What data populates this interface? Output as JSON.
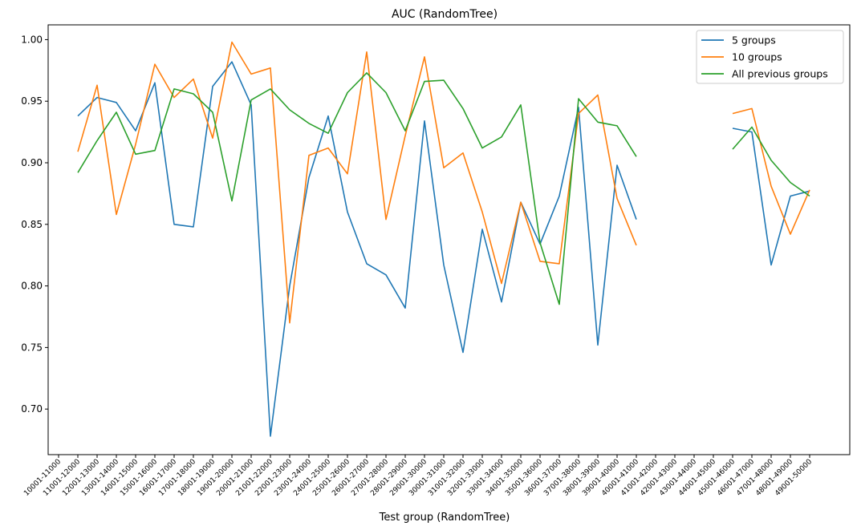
{
  "chart_data": {
    "type": "line",
    "title": "AUC (RandomTree)",
    "xlabel": "Test group (RandomTree)",
    "ylabel": "",
    "ylim": [
      0.663,
      1.012
    ],
    "yticks": [
      "0.70",
      "0.75",
      "0.80",
      "0.85",
      "0.90",
      "0.95",
      "1.00"
    ],
    "ytick_values": [
      0.7,
      0.75,
      0.8,
      0.85,
      0.9,
      0.95,
      1.0
    ],
    "grid": false,
    "legend_position": "top-right",
    "categories": [
      "10001-11000",
      "11001-12000",
      "12001-13000",
      "13001-14000",
      "14001-15000",
      "15001-16000",
      "16001-17000",
      "17001-18000",
      "18001-19000",
      "19001-20000",
      "20001-21000",
      "21001-22000",
      "22001-23000",
      "23001-24000",
      "24001-25000",
      "25001-26000",
      "26001-27000",
      "27001-28000",
      "28001-29000",
      "29001-30000",
      "30001-31000",
      "31001-32000",
      "32001-33000",
      "33001-34000",
      "34001-35000",
      "35001-36000",
      "36001-37000",
      "37001-38000",
      "38001-39000",
      "39001-40000",
      "40001-41000",
      "41001-42000",
      "42001-43000",
      "43001-44000",
      "44001-45000",
      "45001-46000",
      "46001-47000",
      "47001-48000",
      "48001-49000",
      "49001-50000"
    ],
    "series": [
      {
        "name": "5 groups",
        "color": "#1f77b4",
        "values": [
          null,
          0.938,
          0.953,
          0.949,
          0.926,
          0.965,
          0.85,
          0.848,
          0.962,
          0.982,
          0.947,
          0.678,
          0.8,
          0.888,
          0.938,
          0.86,
          0.818,
          0.809,
          0.782,
          0.934,
          0.817,
          0.746,
          0.846,
          0.787,
          0.868,
          0.834,
          0.873,
          0.945,
          0.752,
          0.898,
          0.854,
          null,
          null,
          null,
          null,
          0.928,
          0.925,
          0.817,
          0.873,
          0.877
        ]
      },
      {
        "name": "10 groups",
        "color": "#ff7f0e",
        "values": [
          null,
          0.909,
          0.963,
          0.858,
          0.915,
          0.98,
          0.953,
          0.968,
          0.92,
          0.998,
          0.972,
          0.977,
          0.77,
          0.906,
          0.912,
          0.891,
          0.99,
          0.854,
          0.922,
          0.986,
          0.896,
          0.908,
          0.86,
          0.802,
          0.868,
          0.82,
          0.818,
          0.94,
          0.955,
          0.871,
          0.833,
          null,
          null,
          null,
          null,
          0.94,
          0.944,
          0.881,
          0.842,
          0.878
        ]
      },
      {
        "name": "All previous groups",
        "color": "#2ca02c",
        "values": [
          null,
          0.892,
          0.918,
          0.941,
          0.907,
          0.91,
          0.96,
          0.956,
          0.941,
          0.869,
          0.951,
          0.96,
          0.943,
          0.932,
          0.924,
          0.957,
          0.973,
          0.957,
          0.926,
          0.966,
          0.967,
          0.944,
          0.912,
          0.921,
          0.947,
          0.835,
          0.785,
          0.952,
          0.933,
          0.93,
          0.905,
          null,
          null,
          null,
          null,
          0.911,
          0.929,
          0.902,
          0.884,
          0.873
        ]
      }
    ]
  }
}
